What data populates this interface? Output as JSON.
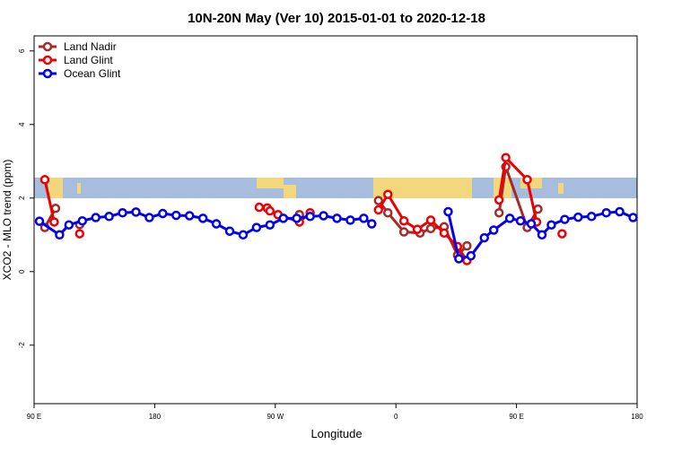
{
  "chart_data": {
    "type": "line",
    "title": "10N-20N May (Ver 10)   2015-01-01 to 2020-12-18",
    "x_label": "Longitude",
    "y_label": "XCO2 - MLO trend (ppm)",
    "xlim": [
      90,
      540
    ],
    "ylim": [
      -3.59,
      6.41
    ],
    "xticks": [
      {
        "value": 90,
        "label": "90 E"
      },
      180,
      {
        "value": 270,
        "label": "90 W"
      },
      {
        "value": 360,
        "label": "0"
      },
      {
        "value": 450,
        "label": "90 E"
      },
      {
        "value": 540,
        "label": "180"
      }
    ],
    "yticks": [
      -2,
      0,
      2,
      4,
      6
    ],
    "legend": "top-left",
    "series": [
      {
        "name": "Land Nadir",
        "color": "#a52a2a",
        "x": [
          98,
          106,
          null,
          124,
          null,
          288,
          null,
          347,
          354,
          366,
          378,
          386,
          396,
          406,
          413,
          null,
          437,
          442,
          458,
          466
        ],
        "values": [
          1.2,
          1.72,
          null,
          1.28,
          null,
          1.55,
          null,
          1.93,
          1.6,
          1.08,
          1.05,
          1.17,
          1.22,
          0.45,
          0.7,
          null,
          1.6,
          2.85,
          1.2,
          1.7
        ]
      },
      {
        "name": "Land Glint",
        "color": "#ee0000",
        "x": [
          98,
          105,
          null,
          124,
          null,
          258,
          264,
          266,
          272,
          288,
          296,
          null,
          347,
          354,
          366,
          376,
          386,
          396,
          406,
          413,
          null,
          437,
          442,
          458,
          465,
          null,
          484
        ],
        "values": [
          2.5,
          1.35,
          null,
          1.03,
          null,
          1.75,
          1.73,
          1.65,
          1.55,
          1.35,
          1.6,
          null,
          1.68,
          2.1,
          1.38,
          1.15,
          1.4,
          1.05,
          0.68,
          0.3,
          null,
          1.95,
          3.1,
          2.5,
          1.35,
          null,
          1.03
        ]
      },
      {
        "name": "Ocean Glint",
        "color": "#0000ee",
        "x": [
          94,
          109,
          116,
          126,
          136,
          146,
          156,
          166,
          176,
          186,
          196,
          206,
          216,
          226,
          236,
          246,
          256,
          266,
          276,
          286,
          296,
          306,
          316,
          326,
          336,
          342,
          null,
          399,
          407,
          416,
          426,
          433,
          445,
          453,
          461,
          469,
          476,
          486,
          496,
          506,
          517,
          527,
          537
        ],
        "values": [
          1.37,
          1.0,
          1.27,
          1.38,
          1.47,
          1.5,
          1.6,
          1.62,
          1.47,
          1.58,
          1.53,
          1.52,
          1.45,
          1.3,
          1.1,
          1.0,
          1.2,
          1.27,
          1.45,
          1.45,
          1.5,
          1.52,
          1.45,
          1.4,
          1.45,
          1.3,
          null,
          1.63,
          0.35,
          0.43,
          0.92,
          1.13,
          1.45,
          1.38,
          1.3,
          1.0,
          1.27,
          1.42,
          1.48,
          1.5,
          1.6,
          1.63,
          1.47
        ]
      }
    ]
  }
}
